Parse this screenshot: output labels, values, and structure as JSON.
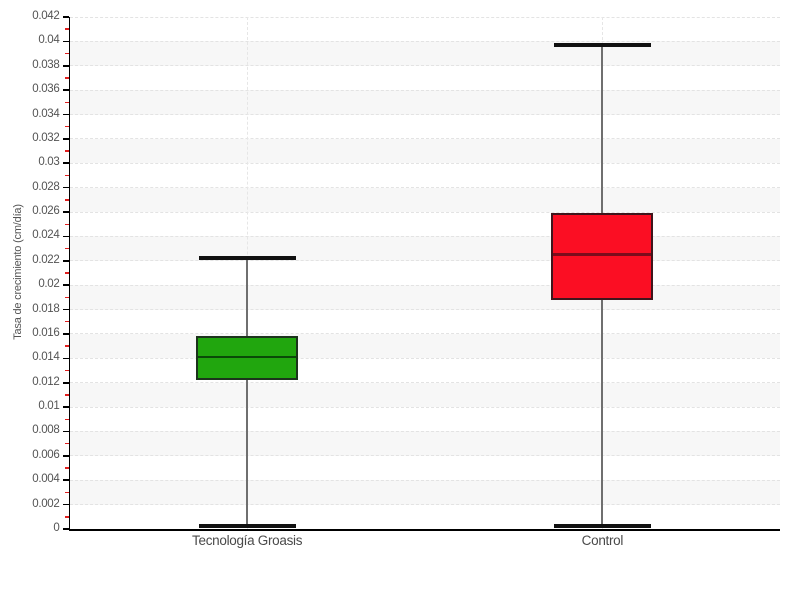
{
  "figure": {
    "background": "#ffffff",
    "band_color": "#f7f7f7",
    "grid_color": "#e3e3e3",
    "guide_color": "#e6e6e6",
    "axis_color": "#000000",
    "major_tick_color": "#000000",
    "minor_tick_color": "#e01f1f",
    "tick_label_color": "#545454",
    "whisker_color": "#6f6f6f",
    "cap_color": "#111111"
  },
  "chart_data": {
    "type": "boxplot",
    "title": "",
    "xlabel": "",
    "ylabel": "Tasa de crecimiento (cm/día)",
    "ylim": [
      0,
      0.042
    ],
    "ytick_interval": 0.002,
    "minor_tick_interval": 0.001,
    "ytick_labels": [
      "0",
      "0.002",
      "0.004",
      "0.006",
      "0.008",
      "0.01",
      "0.012",
      "0.014",
      "0.016",
      "0.018",
      "0.02",
      "0.022",
      "0.024",
      "0.026",
      "0.028",
      "0.03",
      "0.032",
      "0.034",
      "0.036",
      "0.038",
      "0.04",
      "0.042"
    ],
    "grid": "horizontal dashed gridlines, alternating light bands, dashed vertical guide per category",
    "legend": false,
    "categories": [
      "Tecnología Groasis",
      "Control"
    ],
    "series": [
      {
        "name": "Tecnología Groasis",
        "min": 0,
        "q1": 0.0122,
        "median": 0.0141,
        "q3": 0.0158,
        "max": 0.0222,
        "fill": "#21a60e",
        "border": "#1c331c",
        "median_color": "#0a4a08"
      },
      {
        "name": "Control",
        "min": 0,
        "q1": 0.0188,
        "median": 0.0225,
        "q3": 0.0259,
        "max": 0.0397,
        "fill": "#fb0e23",
        "border": "#40151c",
        "median_color": "#7c0c1c"
      }
    ]
  }
}
